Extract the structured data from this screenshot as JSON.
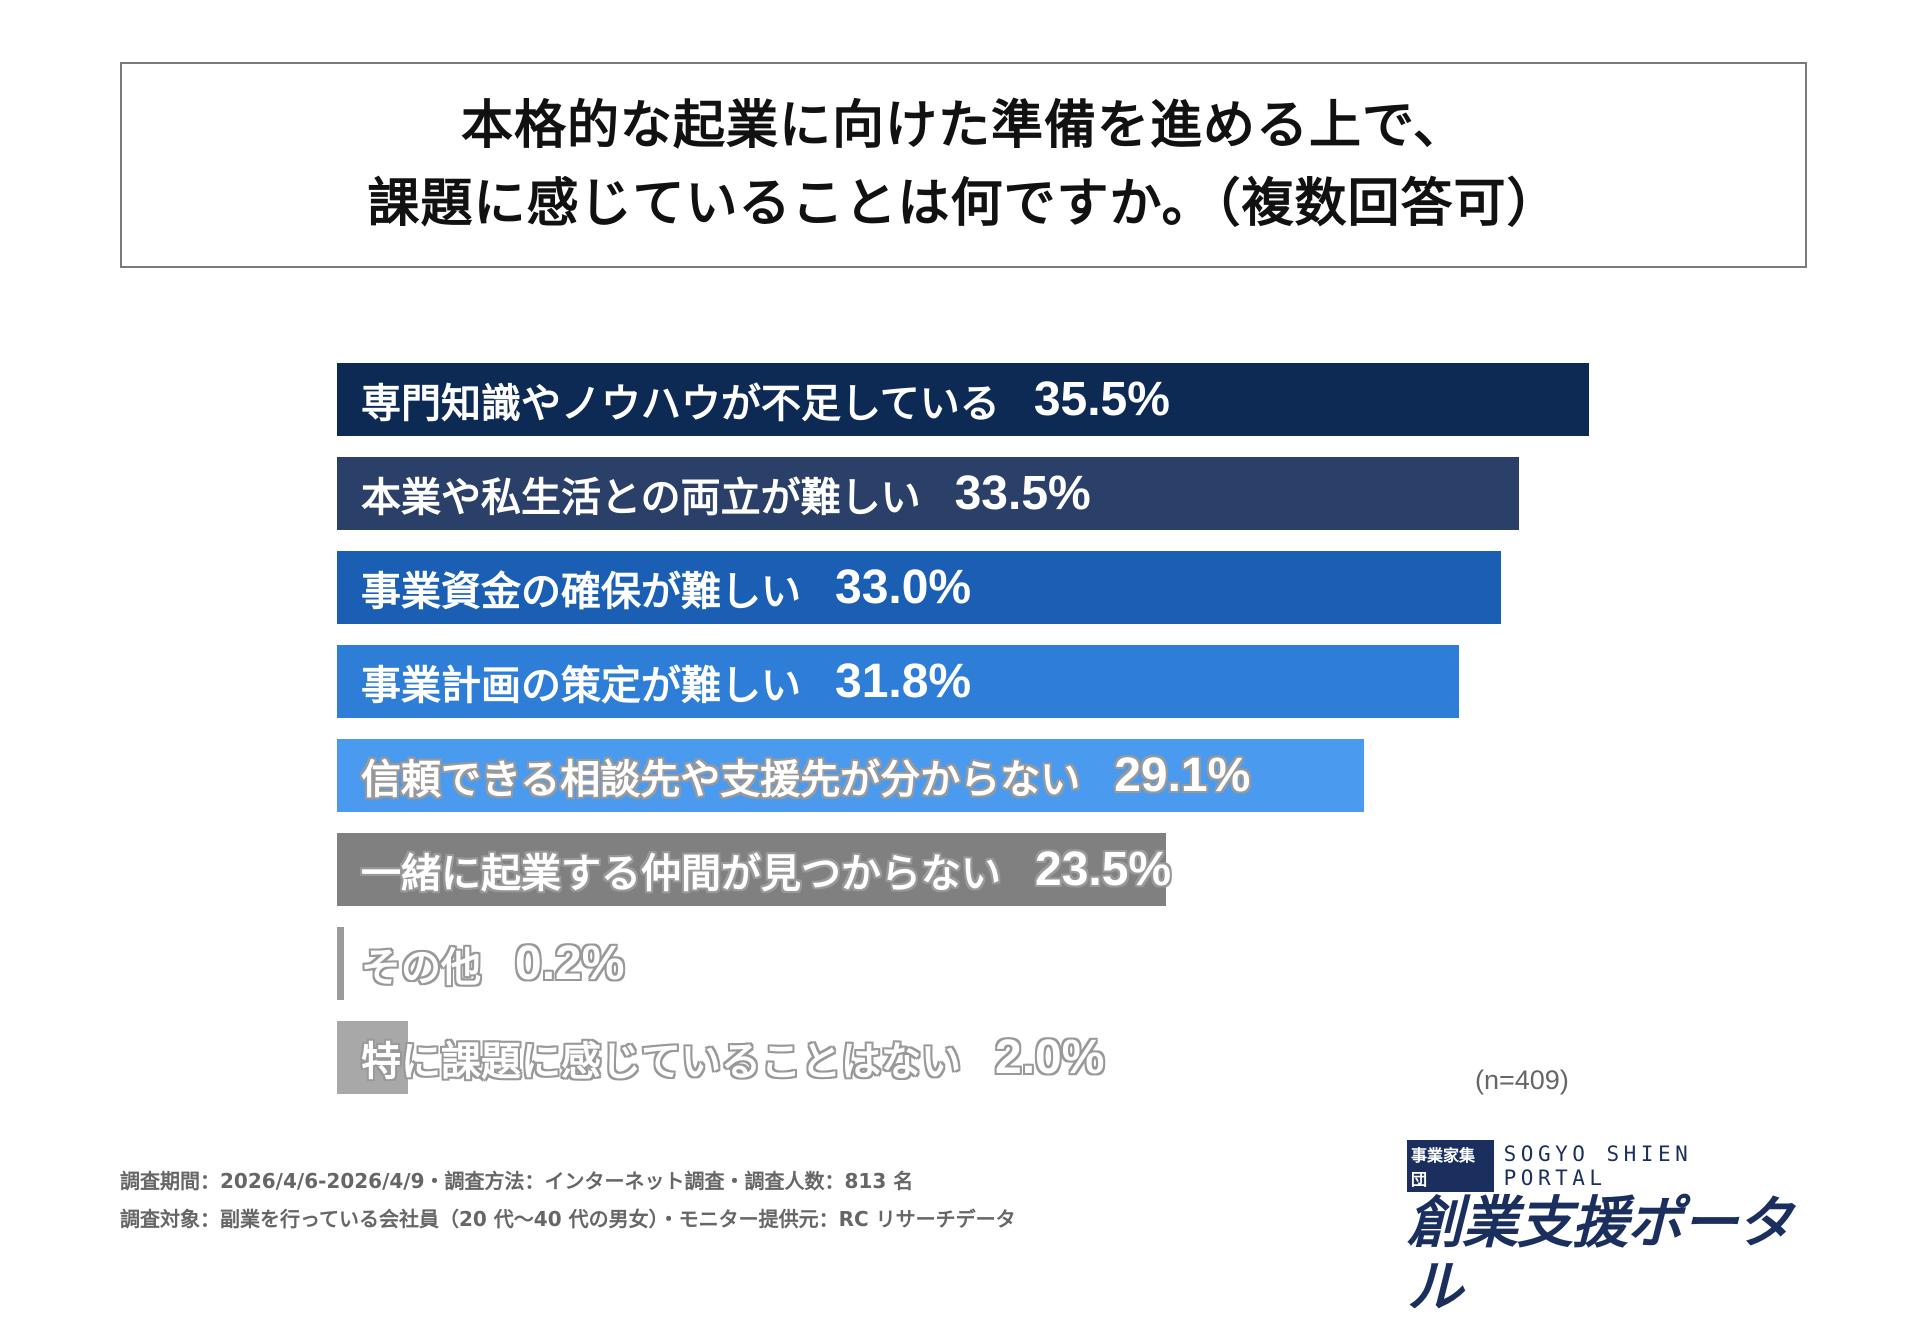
{
  "title": {
    "line1": "本格的な起業に向けた準備を進める上で、",
    "line2": "課題に感じていることは何ですか。（複数回答可）"
  },
  "chart_data": {
    "type": "bar",
    "orientation": "horizontal",
    "categories": [
      "専門知識やノウハウが不足している",
      "本業や私生活との両立が難しい",
      "事業資金の確保が難しい",
      "事業計画の策定が難しい",
      "信頼できる相談先や支援先が分からない",
      "一緒に起業する仲間が見つからない",
      "その他",
      "特に課題に感じていることはない"
    ],
    "values": [
      35.5,
      33.5,
      33.0,
      31.8,
      29.1,
      23.5,
      0.2,
      2.0
    ],
    "value_labels": [
      "35.5%",
      "33.5%",
      "33.0%",
      "31.8%",
      "29.1%",
      "23.5%",
      "0.2%",
      "2.0%"
    ],
    "colors": [
      "#0c2a54",
      "#2b4069",
      "#1a5fb4",
      "#2e7dd6",
      "#4a9bef",
      "#808080",
      "#9a9a9a",
      "#a8a8a8"
    ],
    "xlim": [
      0,
      40
    ],
    "grid": false
  },
  "sample": "(n=409)",
  "footer": {
    "line1": "調査期間：2026/4/6-2026/4/9・調査方法：インターネット調査・調査人数：813 名",
    "line2": "調査対象：副業を行っている会社員（20 代〜40 代の男女）・モニター提供元：RC リサーチデータ"
  },
  "logo": {
    "badge": "事業家集団",
    "english": "SOGYO SHIEN PORTAL",
    "japanese": "創業支援ポータル"
  }
}
